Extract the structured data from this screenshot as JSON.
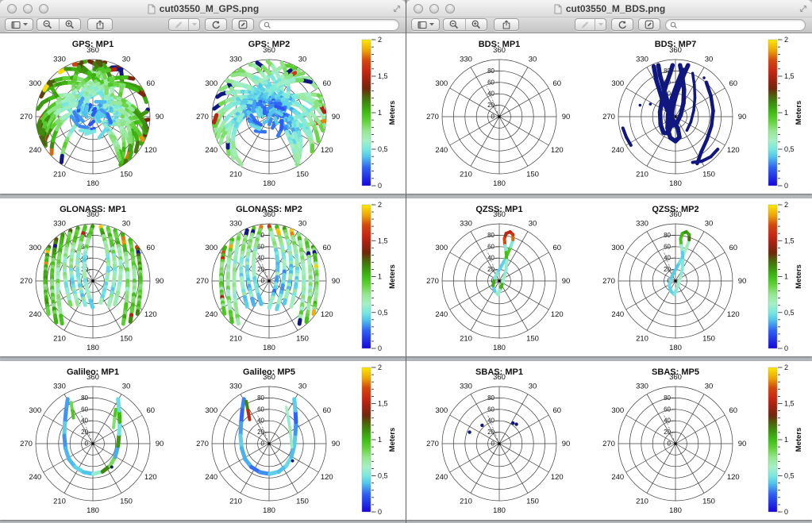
{
  "chrome": {
    "traffic_lights": [
      "close",
      "minimize",
      "zoom"
    ],
    "toolbar": {
      "buttons_left": [
        "sidebar-toggle",
        "zoom-out",
        "zoom-in",
        "share"
      ],
      "buttons_center": [
        "annotate-pen",
        "annotate-dropdown",
        "rotate-left",
        "show-markup-toolbar"
      ],
      "search_placeholder": ""
    },
    "fullscreen_control": "enter-fullscreen"
  },
  "windows": [
    {
      "title": "cut03550_M_GPS.png",
      "pages": [
        {
          "plots": [
            {
              "title": "GPS: MP1",
              "pattern": "gps",
              "variant": 0
            },
            {
              "title": "GPS: MP2",
              "pattern": "gps",
              "variant": 1
            }
          ]
        },
        {
          "plots": [
            {
              "title": "GLONASS: MP1",
              "pattern": "glonass",
              "variant": 0
            },
            {
              "title": "GLONASS: MP2",
              "pattern": "glonass",
              "variant": 1
            }
          ]
        },
        {
          "plots": [
            {
              "title": "Galileo: MP1",
              "pattern": "galileo",
              "variant": 0
            },
            {
              "title": "Galileo: MP5",
              "pattern": "galileo",
              "variant": 1
            }
          ]
        }
      ]
    },
    {
      "title": "cut03550_M_BDS.png",
      "pages": [
        {
          "plots": [
            {
              "title": "BDS: MP1",
              "pattern": "empty",
              "variant": 0
            },
            {
              "title": "BDS: MP7",
              "pattern": "bds-mp7",
              "variant": 0
            }
          ]
        },
        {
          "plots": [
            {
              "title": "QZSS: MP1",
              "pattern": "qzss",
              "variant": 0
            },
            {
              "title": "QZSS: MP2",
              "pattern": "qzss",
              "variant": 1
            }
          ]
        },
        {
          "plots": [
            {
              "title": "SBAS: MP1",
              "pattern": "sbas-dots",
              "variant": 0
            },
            {
              "title": "SBAS: MP5",
              "pattern": "empty",
              "variant": 0
            }
          ]
        }
      ]
    }
  ],
  "polar": {
    "azimuth_labels": [
      "360",
      "30",
      "60",
      "90",
      "120",
      "150",
      "180",
      "210",
      "240",
      "270",
      "300",
      "330"
    ],
    "elevation_ring_labels": [
      "20",
      "40",
      "60",
      "80"
    ],
    "center_label": "0"
  },
  "colorbar": {
    "label": "Meters",
    "tick_labels": [
      "0",
      "0,5",
      "1",
      "1,5",
      "2"
    ],
    "min": 0,
    "max": 2,
    "navy": "#10187f",
    "stops": [
      {
        "v": 0.0,
        "c": "#1605dd"
      },
      {
        "v": 0.25,
        "c": "#2f62f5"
      },
      {
        "v": 0.4,
        "c": "#52c6ec"
      },
      {
        "v": 0.5,
        "c": "#79e8df"
      },
      {
        "v": 0.62,
        "c": "#a5f0c5"
      },
      {
        "v": 0.75,
        "c": "#97e693"
      },
      {
        "v": 0.88,
        "c": "#63d33c"
      },
      {
        "v": 1.0,
        "c": "#3fbd14"
      },
      {
        "v": 1.12,
        "c": "#3d9110"
      },
      {
        "v": 1.24,
        "c": "#4f5d0c"
      },
      {
        "v": 1.33,
        "c": "#6f280c"
      },
      {
        "v": 1.45,
        "c": "#9e2210"
      },
      {
        "v": 1.58,
        "c": "#c92711"
      },
      {
        "v": 1.72,
        "c": "#d4490e"
      },
      {
        "v": 1.85,
        "c": "#eda307"
      },
      {
        "v": 2.0,
        "c": "#fce903"
      }
    ]
  }
}
